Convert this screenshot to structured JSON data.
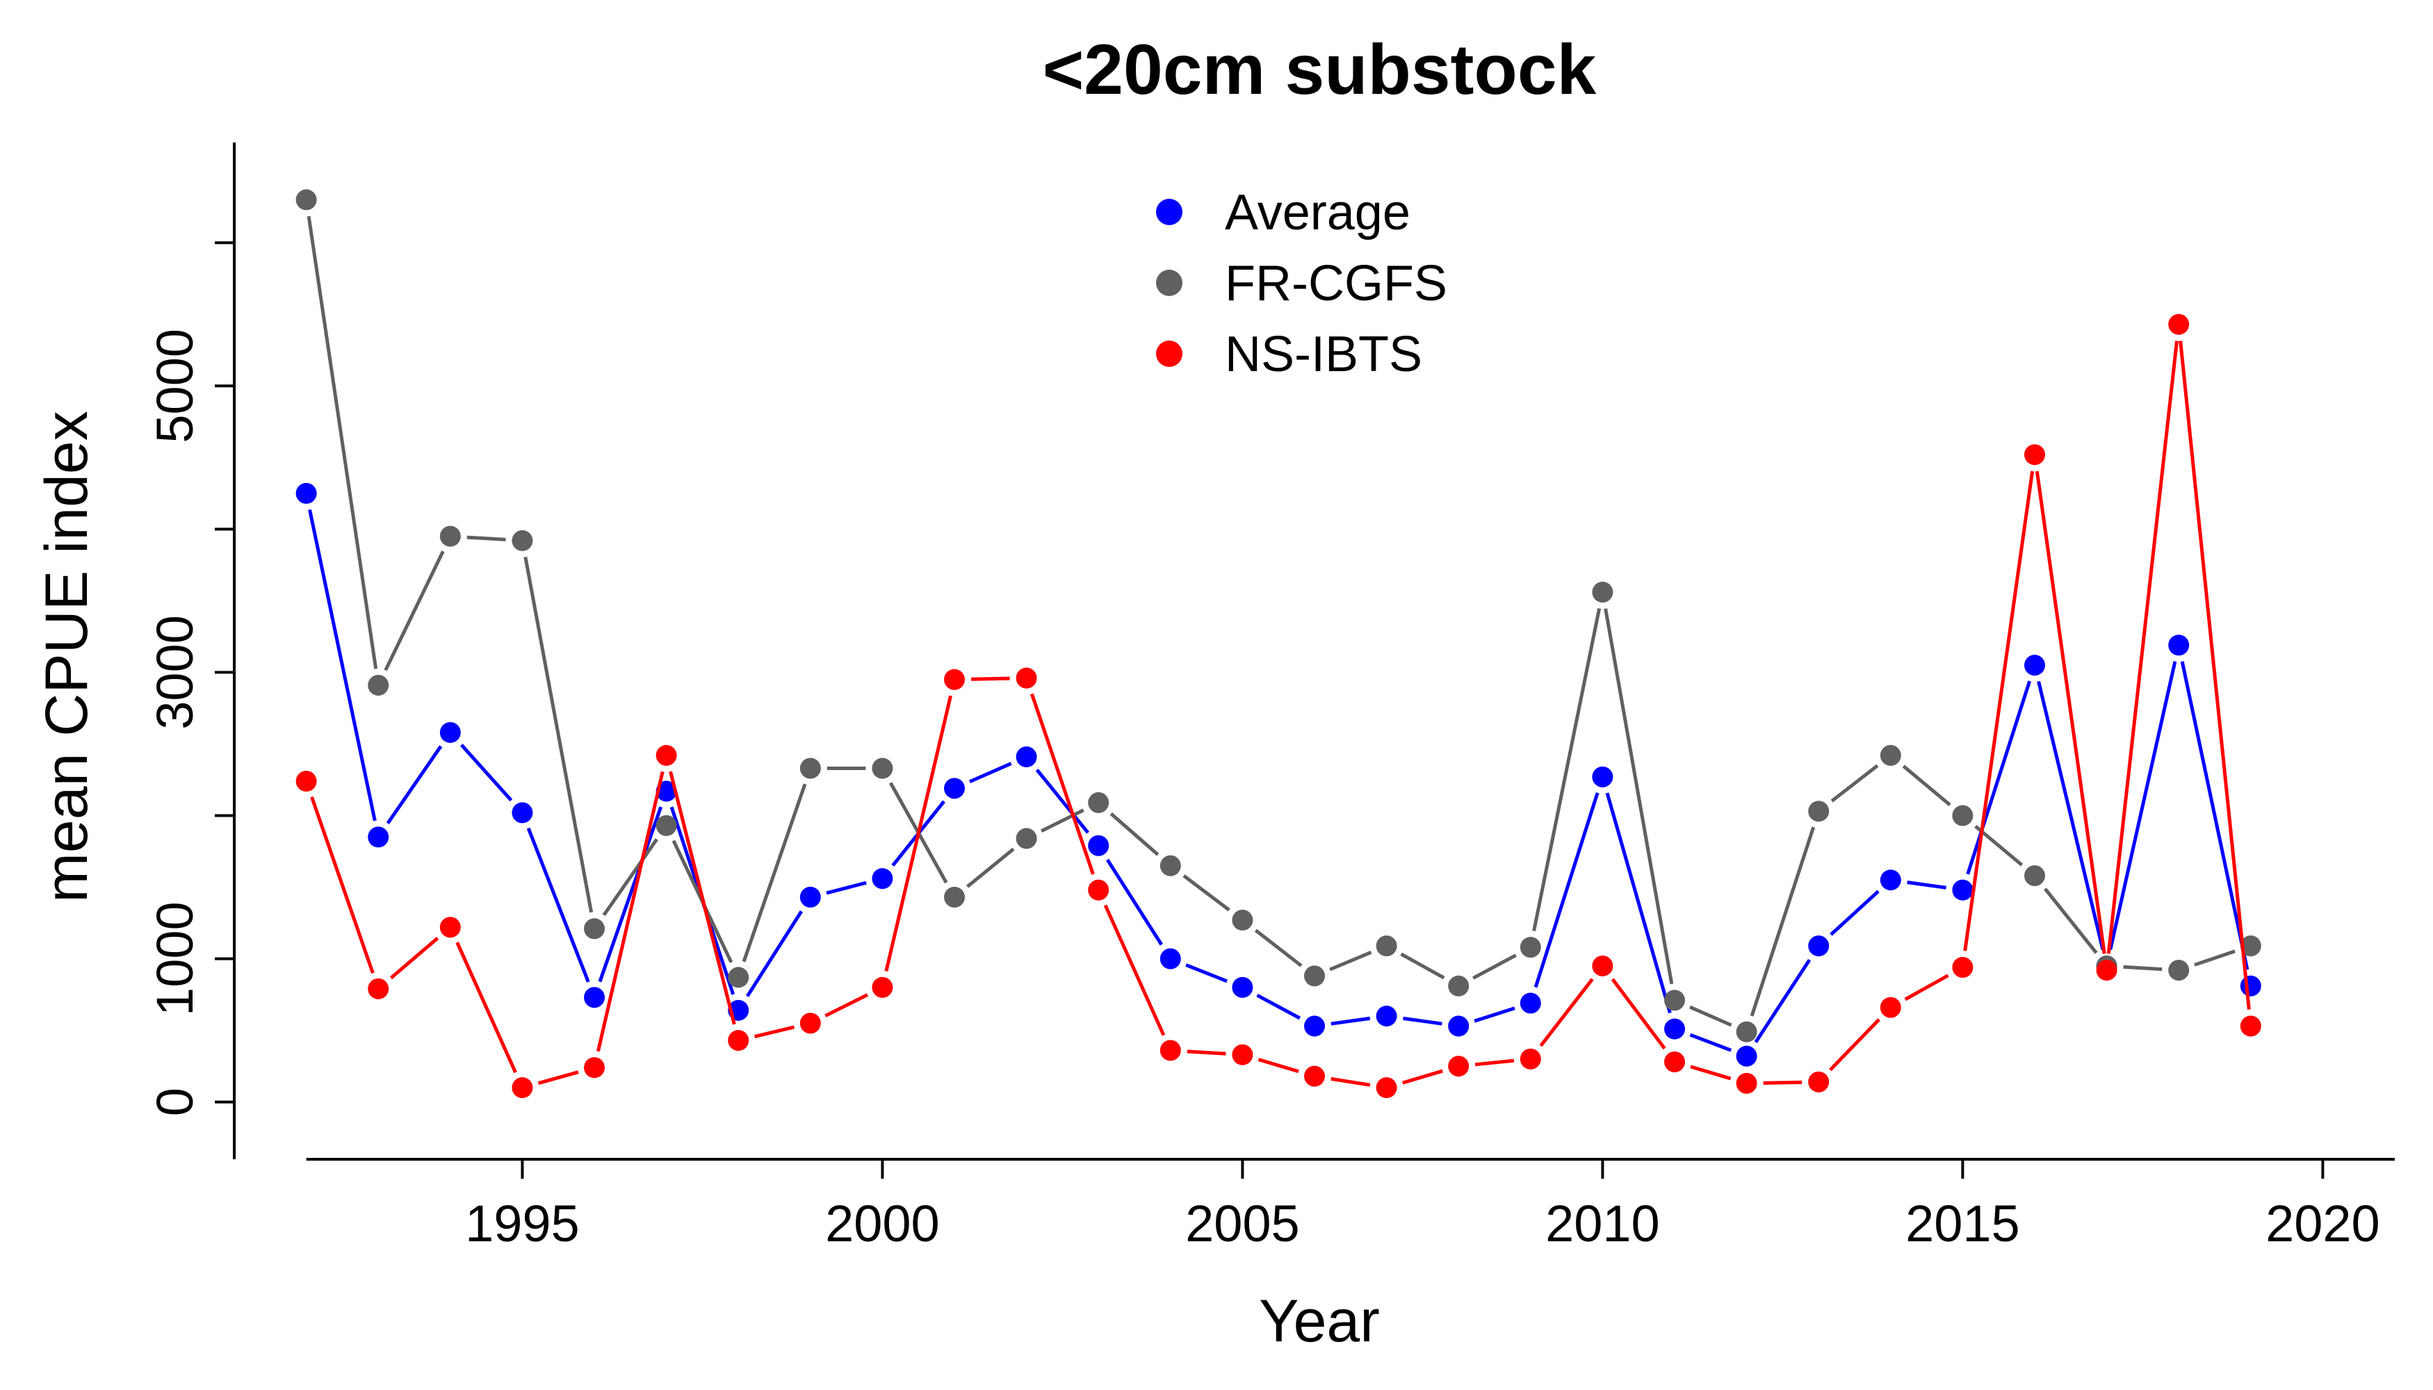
{
  "chart_data": {
    "type": "line",
    "title": "<20cm substock",
    "xlabel": "Year",
    "ylabel": "mean CPUE index",
    "xlim": [
      1991,
      2021
    ],
    "ylim": [
      -400,
      6700
    ],
    "x_ticks": [
      1995,
      2000,
      2005,
      2010,
      2015,
      2020
    ],
    "y_ticks": [
      0,
      1000,
      3000,
      5000
    ],
    "legend_position": "top-center",
    "grid": false,
    "x": [
      1992,
      1993,
      1994,
      1995,
      1996,
      1997,
      1998,
      1999,
      2000,
      2001,
      2002,
      2003,
      2004,
      2005,
      2006,
      2007,
      2008,
      2009,
      2010,
      2011,
      2012,
      2013,
      2014,
      2015,
      2016,
      2017,
      2018,
      2019
    ],
    "series": [
      {
        "name": "Average",
        "color": "#0000ff",
        "values": [
          4250,
          1850,
          2580,
          2020,
          730,
          2170,
          640,
          1430,
          1560,
          2190,
          2410,
          1790,
          1000,
          800,
          530,
          600,
          530,
          690,
          2270,
          510,
          320,
          1090,
          1550,
          1480,
          3050,
          950,
          3190,
          810
        ]
      },
      {
        "name": "FR-CGFS",
        "color": "#606060",
        "values": [
          6300,
          2910,
          3950,
          3920,
          1210,
          1930,
          870,
          2330,
          2330,
          1430,
          1840,
          2090,
          1650,
          1270,
          880,
          1090,
          810,
          1080,
          3560,
          710,
          490,
          2030,
          2420,
          2000,
          1580,
          950,
          920,
          1090
        ]
      },
      {
        "name": "NS-IBTS",
        "color": "#ff0000",
        "values": [
          2240,
          790,
          1220,
          100,
          240,
          2420,
          430,
          550,
          800,
          2950,
          2960,
          1480,
          360,
          330,
          180,
          100,
          250,
          300,
          950,
          280,
          130,
          140,
          660,
          940,
          4520,
          920,
          5430,
          530
        ]
      }
    ]
  }
}
